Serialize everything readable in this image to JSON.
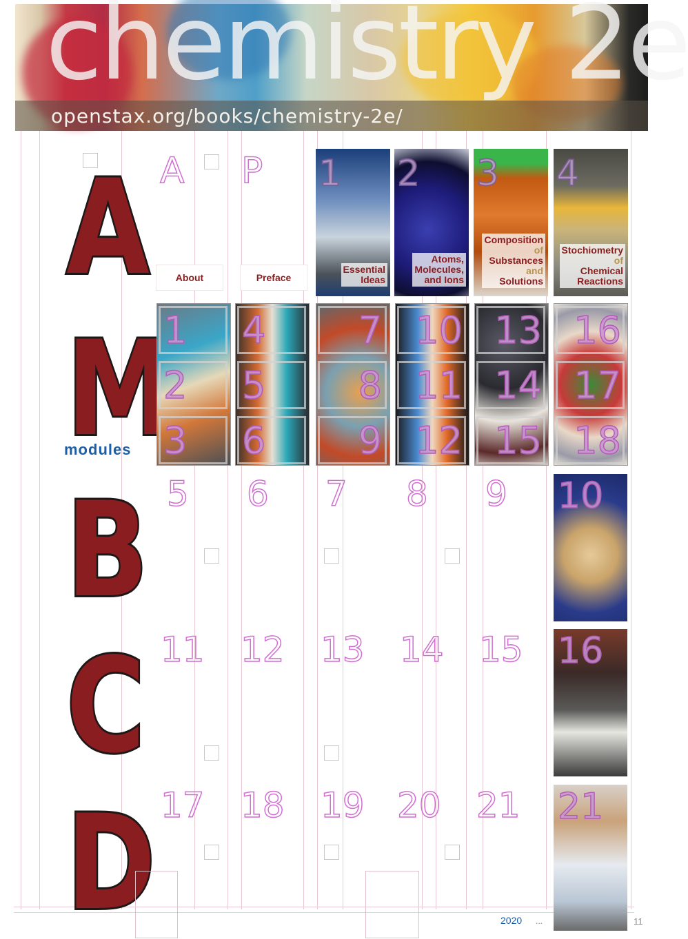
{
  "banner": {
    "title": "chemistry 2e",
    "url": "openstax.org/books/chemistry-2e/"
  },
  "row_letters": {
    "a": "A",
    "m": "M",
    "modules": "modules",
    "b": "B",
    "c": "C",
    "d": "D"
  },
  "front_matter": {
    "a_letter": "A",
    "p_letter": "P",
    "about": "About",
    "preface": "Preface"
  },
  "chapters": [
    {
      "num": "1",
      "lines": [
        "Essential",
        "Ideas"
      ],
      "of_lines": []
    },
    {
      "num": "2",
      "lines": [
        "Atoms,",
        "Molecules,",
        "and Ions"
      ],
      "of_lines": []
    },
    {
      "num": "3",
      "title": "Composition",
      "of": "of",
      "title2": "Substances",
      "and": "and",
      "title3": "Solutions"
    },
    {
      "num": "4",
      "title": "Stochiometry",
      "of": "of",
      "title2": "Chemical",
      "title3": "Reactions"
    }
  ],
  "modules": {
    "col1": [
      "1",
      "2",
      "3"
    ],
    "col2": [
      "4",
      "5",
      "6"
    ],
    "col3": [
      "7",
      "8",
      "9"
    ],
    "col4": [
      "10",
      "11",
      "12"
    ],
    "col5": [
      "13",
      "14",
      "15"
    ],
    "col6": [
      "16",
      "17",
      "18"
    ]
  },
  "row_b": [
    "5",
    "6",
    "7",
    "8",
    "9"
  ],
  "row_c": [
    "11",
    "12",
    "13",
    "14",
    "15"
  ],
  "row_d": [
    "17",
    "18",
    "19",
    "20",
    "21"
  ],
  "photos": {
    "p10": "10",
    "p16": "16",
    "p21": "21"
  },
  "footer": {
    "year": "2020",
    "dots": "...",
    "page": "11"
  }
}
